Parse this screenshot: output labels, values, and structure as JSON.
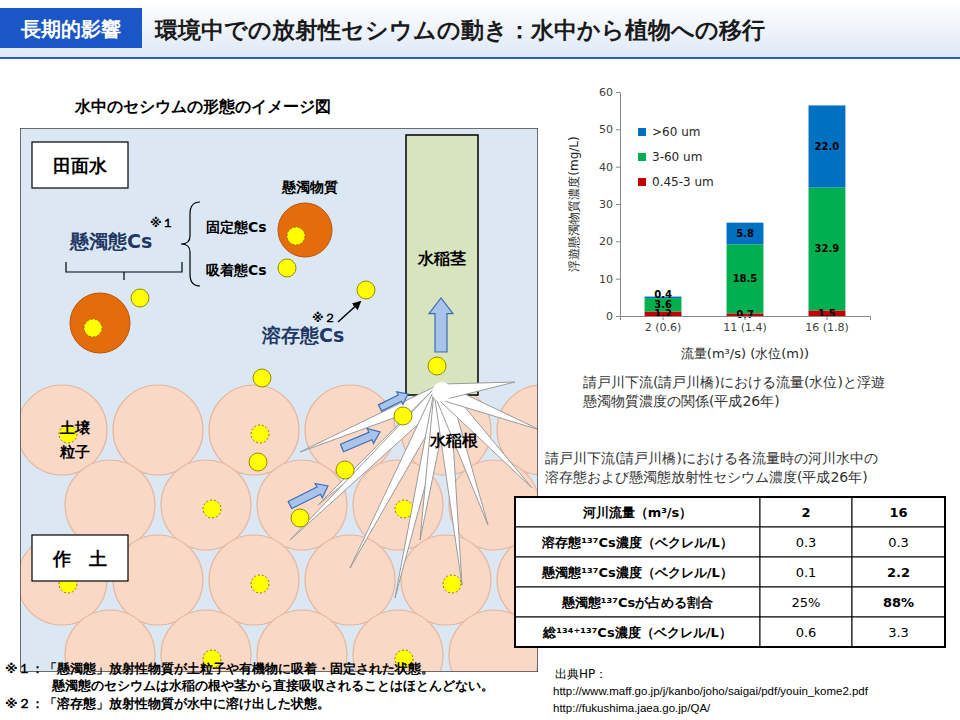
{
  "header": {
    "label": "長期的影響",
    "title": "環境中での放射性セシウムの動き：水中から植物への移行"
  },
  "diagram": {
    "title": "水中のセシウムの形態のイメージ図",
    "paddy_water": "田面水",
    "plow_soil": "作　土",
    "stem": "水稲茎",
    "root": "水稲根",
    "soil_particle": [
      "土壌",
      "粒子"
    ],
    "suspended_matter": "懸濁物質",
    "fixed_cs": "固定態Cs",
    "adsorbed_cs": "吸着態Cs",
    "suspended_cs": "懸濁態Cs",
    "dissolved_cs": "溶存態Cs",
    "note1_mark": "※１",
    "note2_mark": "※２"
  },
  "chart_data": {
    "type": "bar",
    "stacked": true,
    "data_labels": true,
    "grid": false,
    "legend": "upper left",
    "categories": [
      "2 (0.6)",
      "11 (1.4)",
      "16 (1.8)"
    ],
    "series": [
      {
        "name": "0.45-3 um",
        "color": "#c00000",
        "values": [
          1.2,
          0.7,
          1.5
        ]
      },
      {
        "name": "3-60 um",
        "color": "#00b050",
        "values": [
          3.6,
          18.5,
          32.9
        ]
      },
      {
        "name": ">60 um",
        "color": "#0070c0",
        "values": [
          0.4,
          5.8,
          22.0
        ],
        "value_labels": [
          "0.4",
          "5.8",
          "22.0"
        ]
      }
    ],
    "ylim": [
      0,
      60
    ],
    "yticks": [
      0,
      10,
      20,
      30,
      40,
      50,
      60
    ],
    "xlabel": "流量(m³/s) (水位(m))",
    "ylabel": "浮遊懸濁物質濃度(mg/L)",
    "caption": [
      "請戸川下流(請戸川橋)における流量(水位)と浮遊",
      "懸濁物質濃度の関係(平成26年)"
    ]
  },
  "table": {
    "title": [
      "請戸川下流(請戸川橋)における各流量時の河川水中の",
      "溶存態および懸濁態放射性セシウム濃度(平成26年)"
    ],
    "header": [
      "河川流量（m³/s）",
      "2",
      "16"
    ],
    "rows": [
      [
        "溶存態¹³⁷Cs濃度（ベクレル/L）",
        "0.3",
        "0.3"
      ],
      [
        "懸濁態¹³⁷Cs濃度（ベクレル/L）",
        "0.1",
        "2.2"
      ],
      [
        "懸濁態¹³⁷Csが占める割合",
        "25%",
        "88%"
      ],
      [
        "総¹³⁴⁺¹³⁷Cs濃度（ベクレル/L）",
        "0.6",
        "3.3"
      ]
    ]
  },
  "footnotes": [
    "※１：「懸濁態」放射性物質が土粒子や有機物に吸着・固定された状態。",
    "懸濁態のセシウムは水稲の根や茎から直接吸収されることはほとんどない。",
    "※２：「溶存態」放射性物質が水中に溶け出した状態。"
  ],
  "source": {
    "label": "出典HP：",
    "urls": [
      "http://www.maff.go.jp/j/kanbo/joho/saigai/pdf/youin_kome2.pdf",
      "http://fukushima.jaea.go.jp/QA/"
    ]
  }
}
